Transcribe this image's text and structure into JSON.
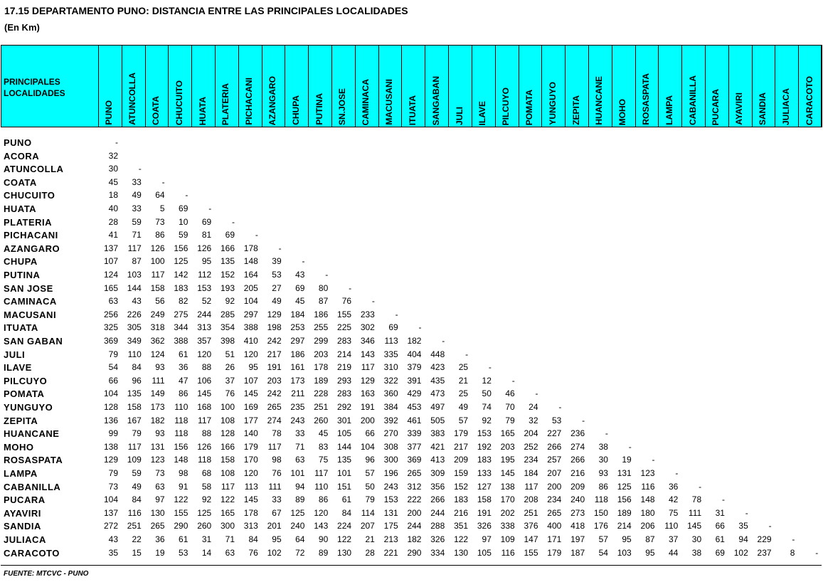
{
  "title": "17.15 DEPARTAMENTO PUNO: DISTANCIA ENTRE LAS PRINCIPALES LOCALIDADES",
  "subtitle": "(En Km)",
  "table": {
    "corner": "PRINCIPALES LOCALIDADES",
    "columns": [
      "PUNO",
      "ATUNCOLLA",
      "COATA",
      "CHUCUITO",
      "HUATA",
      "PLATERIA",
      "PICHACANI",
      "AZANGARO",
      "CHUPA",
      "PUTINA",
      "SN.JOSE",
      "CAMINACA",
      "MACUSANI",
      "ITUATA",
      "SANGABAN",
      "JULI",
      "ILAVE",
      "PILCUYO",
      "POMATA",
      "YUNGUYO",
      "ZEPITA",
      "HUANCANE",
      "MOHO",
      "ROSASPATA",
      "LAMPA",
      "CABANILLA",
      "PUCARA",
      "AYAVIRI",
      "SANDIA",
      "JULIACA",
      "CARACOTO"
    ],
    "rows": [
      {
        "label": "PUNO",
        "cells": [
          "-"
        ]
      },
      {
        "label": "ACORA",
        "cells": [
          32
        ]
      },
      {
        "label": "ATUNCOLLA",
        "cells": [
          30,
          "-"
        ]
      },
      {
        "label": "COATA",
        "cells": [
          45,
          33,
          "-"
        ]
      },
      {
        "label": "CHUCUITO",
        "cells": [
          18,
          49,
          64,
          "-"
        ]
      },
      {
        "label": "HUATA",
        "cells": [
          40,
          33,
          5,
          69,
          "-"
        ]
      },
      {
        "label": "PLATERIA",
        "cells": [
          28,
          59,
          73,
          10,
          69,
          "-"
        ]
      },
      {
        "label": "PICHACANI",
        "cells": [
          41,
          71,
          86,
          59,
          81,
          69,
          "-"
        ]
      },
      {
        "label": "AZANGARO",
        "cells": [
          137,
          117,
          126,
          156,
          126,
          166,
          178,
          "-"
        ]
      },
      {
        "label": "CHUPA",
        "cells": [
          107,
          87,
          100,
          125,
          95,
          135,
          148,
          39,
          "-"
        ]
      },
      {
        "label": "PUTINA",
        "cells": [
          124,
          103,
          117,
          142,
          112,
          152,
          164,
          53,
          43,
          "-"
        ]
      },
      {
        "label": "SAN JOSE",
        "cells": [
          165,
          144,
          158,
          183,
          153,
          193,
          205,
          27,
          69,
          80,
          "-"
        ]
      },
      {
        "label": "CAMINACA",
        "cells": [
          63,
          43,
          56,
          82,
          52,
          92,
          104,
          49,
          45,
          87,
          76,
          "-"
        ]
      },
      {
        "label": "MACUSANI",
        "cells": [
          256,
          226,
          249,
          275,
          244,
          285,
          297,
          129,
          184,
          186,
          155,
          233,
          "-"
        ]
      },
      {
        "label": "ITUATA",
        "cells": [
          325,
          305,
          318,
          344,
          313,
          354,
          388,
          198,
          253,
          255,
          225,
          302,
          69,
          "-"
        ]
      },
      {
        "label": "SAN GABAN",
        "cells": [
          369,
          349,
          362,
          388,
          357,
          398,
          410,
          242,
          297,
          299,
          283,
          346,
          113,
          182,
          "-"
        ]
      },
      {
        "label": "JULI",
        "cells": [
          79,
          110,
          124,
          61,
          120,
          51,
          120,
          217,
          186,
          203,
          214,
          143,
          335,
          404,
          448,
          "-"
        ]
      },
      {
        "label": "ILAVE",
        "cells": [
          54,
          84,
          93,
          36,
          88,
          26,
          95,
          191,
          161,
          178,
          219,
          117,
          310,
          379,
          423,
          25,
          "-"
        ]
      },
      {
        "label": "PILCUYO",
        "cells": [
          66,
          96,
          111,
          47,
          106,
          37,
          107,
          203,
          173,
          189,
          293,
          129,
          322,
          391,
          435,
          21,
          12,
          "-"
        ]
      },
      {
        "label": "POMATA",
        "cells": [
          104,
          135,
          149,
          86,
          145,
          76,
          145,
          242,
          211,
          228,
          283,
          163,
          360,
          429,
          473,
          25,
          50,
          46,
          "-"
        ]
      },
      {
        "label": "YUNGUYO",
        "cells": [
          128,
          158,
          173,
          110,
          168,
          100,
          169,
          265,
          235,
          251,
          292,
          191,
          384,
          453,
          497,
          49,
          74,
          70,
          24,
          "-"
        ]
      },
      {
        "label": "ZEPITA",
        "cells": [
          136,
          167,
          182,
          118,
          117,
          108,
          177,
          274,
          243,
          260,
          301,
          200,
          392,
          461,
          505,
          57,
          92,
          79,
          32,
          53,
          "-"
        ]
      },
      {
        "label": "HUANCANE",
        "cells": [
          99,
          79,
          93,
          118,
          88,
          128,
          140,
          78,
          33,
          45,
          105,
          66,
          270,
          339,
          383,
          179,
          153,
          165,
          204,
          227,
          236,
          "-"
        ]
      },
      {
        "label": "MOHO",
        "cells": [
          138,
          117,
          131,
          156,
          126,
          166,
          179,
          117,
          71,
          83,
          144,
          104,
          308,
          377,
          421,
          217,
          192,
          203,
          252,
          266,
          274,
          38,
          "-"
        ]
      },
      {
        "label": "ROSASPATA",
        "cells": [
          129,
          109,
          123,
          148,
          118,
          158,
          170,
          98,
          63,
          75,
          135,
          96,
          300,
          369,
          413,
          209,
          183,
          195,
          234,
          257,
          266,
          30,
          19,
          "-"
        ]
      },
      {
        "label": "LAMPA",
        "cells": [
          79,
          59,
          73,
          98,
          68,
          108,
          120,
          76,
          101,
          117,
          101,
          57,
          196,
          265,
          309,
          159,
          133,
          145,
          184,
          207,
          216,
          93,
          131,
          123,
          "-"
        ]
      },
      {
        "label": "CABANILLA",
        "cells": [
          73,
          49,
          63,
          91,
          58,
          117,
          113,
          111,
          94,
          110,
          151,
          50,
          243,
          312,
          356,
          152,
          127,
          138,
          117,
          200,
          209,
          86,
          125,
          116,
          36,
          "-"
        ]
      },
      {
        "label": "PUCARA",
        "cells": [
          104,
          84,
          97,
          122,
          92,
          122,
          145,
          33,
          89,
          86,
          61,
          79,
          153,
          222,
          266,
          183,
          158,
          170,
          208,
          234,
          240,
          118,
          156,
          148,
          42,
          78,
          "-"
        ]
      },
      {
        "label": "AYAVIRI",
        "cells": [
          137,
          116,
          130,
          155,
          125,
          165,
          178,
          67,
          125,
          120,
          84,
          114,
          131,
          200,
          244,
          216,
          191,
          202,
          251,
          265,
          273,
          150,
          189,
          180,
          75,
          111,
          31,
          "-"
        ]
      },
      {
        "label": "SANDIA",
        "cells": [
          272,
          251,
          265,
          290,
          260,
          300,
          313,
          201,
          240,
          143,
          224,
          207,
          175,
          244,
          288,
          351,
          326,
          338,
          376,
          400,
          418,
          176,
          214,
          206,
          110,
          145,
          66,
          35,
          "-"
        ]
      },
      {
        "label": "JULIACA",
        "cells": [
          43,
          22,
          36,
          61,
          31,
          71,
          84,
          95,
          64,
          90,
          122,
          21,
          213,
          182,
          326,
          122,
          97,
          109,
          147,
          171,
          197,
          57,
          95,
          87,
          37,
          30,
          61,
          94,
          229,
          "-"
        ]
      },
      {
        "label": "CARACOTO",
        "cells": [
          35,
          15,
          19,
          53,
          14,
          63,
          76,
          102,
          72,
          89,
          130,
          28,
          221,
          290,
          334,
          130,
          105,
          116,
          155,
          179,
          187,
          54,
          103,
          95,
          44,
          38,
          69,
          102,
          237,
          8,
          "-"
        ]
      }
    ]
  },
  "footer": "FUENTE: MTCVC - PUNO"
}
